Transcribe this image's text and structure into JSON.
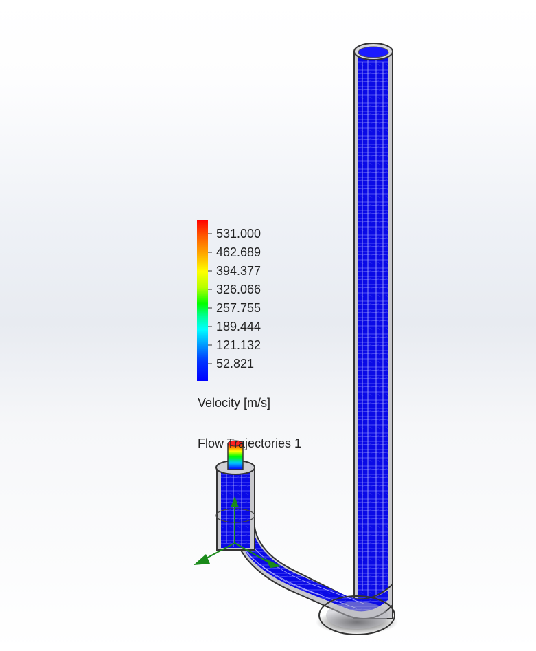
{
  "legend": {
    "values": [
      "531.000",
      "462.689",
      "394.377",
      "326.066",
      "257.755",
      "189.444",
      "121.132",
      "52.821"
    ],
    "title": "Velocity [m/s]",
    "colors": {
      "max": "#ff0000",
      "high": "#ffb000",
      "mid_high": "#ffff00",
      "mid": "#00ff00",
      "mid_low": "#00ffff",
      "low": "#0032ff",
      "min": "#0000ff"
    }
  },
  "plot": {
    "name": "Flow Trajectories 1"
  },
  "scene": {
    "object_name": "pipe-model",
    "trajectory_color": "#0000ff",
    "triad_color": "#1a8a1a",
    "icons": [
      "coordinate-triad-icon"
    ]
  }
}
